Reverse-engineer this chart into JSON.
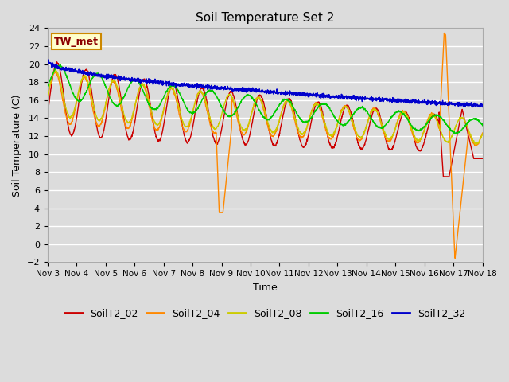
{
  "title": "Soil Temperature Set 2",
  "xlabel": "Time",
  "ylabel": "Soil Temperature (C)",
  "ylim": [
    -2,
    24
  ],
  "yticks": [
    -2,
    0,
    2,
    4,
    6,
    8,
    10,
    12,
    14,
    16,
    18,
    20,
    22,
    24
  ],
  "background_color": "#dcdcdc",
  "plot_bg_color": "#dcdcdc",
  "series_colors": {
    "SoilT2_02": "#cc0000",
    "SoilT2_04": "#ff8800",
    "SoilT2_08": "#cccc00",
    "SoilT2_16": "#00cc00",
    "SoilT2_32": "#0000cc"
  },
  "legend_label": "TW_met",
  "xtick_labels": [
    "Nov 3",
    "Nov 4",
    "Nov 5",
    "Nov 6",
    "Nov 7",
    "Nov 8",
    "Nov 9",
    "Nov 10",
    "Nov 11",
    "Nov 12",
    "Nov 13",
    "Nov 14",
    "Nov 15",
    "Nov 16",
    "Nov 17",
    "Nov 18"
  ]
}
